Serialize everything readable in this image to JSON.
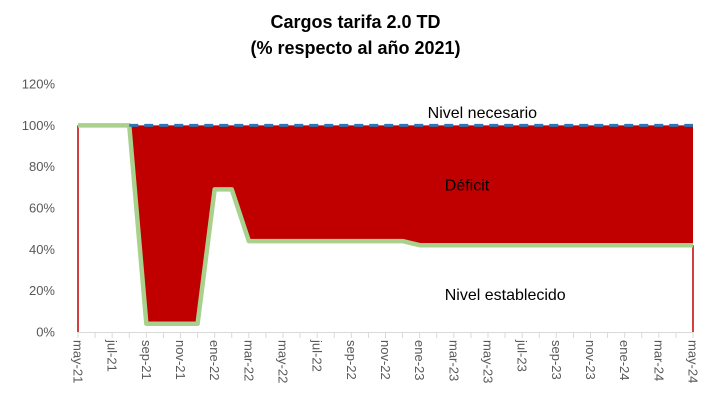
{
  "chart_data": {
    "type": "area",
    "title": [
      "Cargos tarifa 2.0 TD",
      "(% respecto al año 2021)"
    ],
    "xlabel": "",
    "ylabel": "",
    "ylim": [
      0,
      120
    ],
    "yticks": [
      "0%",
      "20%",
      "40%",
      "60%",
      "80%",
      "100%",
      "120%"
    ],
    "y_tick_values": [
      0,
      20,
      40,
      60,
      80,
      100,
      120
    ],
    "x_tick_labels": [
      "may-21",
      "jul-21",
      "sep-21",
      "nov-21",
      "ene-22",
      "mar-22",
      "may-22",
      "jul-22",
      "sep-22",
      "nov-22",
      "ene-23",
      "mar-23",
      "may-23",
      "jul-23",
      "sep-23",
      "nov-23",
      "ene-24",
      "mar-24",
      "may-24"
    ],
    "x_tick_months": [
      "2021-05",
      "2021-07",
      "2021-09",
      "2021-11",
      "2022-01",
      "2022-03",
      "2022-05",
      "2022-07",
      "2022-09",
      "2022-11",
      "2023-01",
      "2023-03",
      "2023-05",
      "2023-07",
      "2023-09",
      "2023-11",
      "2024-01",
      "2024-03",
      "2024-05"
    ],
    "grid": false,
    "series": [
      {
        "name": "Nivel necesario",
        "color": "#2e75b6",
        "style": "dashed",
        "points": [
          {
            "x": "2021-05",
            "y": 100
          },
          {
            "x": "2024-05",
            "y": 100
          }
        ]
      },
      {
        "name": "Nivel establecido",
        "color": "#a9d18e",
        "style": "solid",
        "points": [
          {
            "x": "2021-05",
            "y": 100
          },
          {
            "x": "2021-07",
            "y": 100
          },
          {
            "x": "2021-08",
            "y": 100
          },
          {
            "x": "2021-09",
            "y": 4
          },
          {
            "x": "2021-10",
            "y": 4
          },
          {
            "x": "2021-11",
            "y": 4
          },
          {
            "x": "2021-12",
            "y": 4
          },
          {
            "x": "2022-01",
            "y": 69
          },
          {
            "x": "2022-02",
            "y": 69
          },
          {
            "x": "2022-03",
            "y": 44
          },
          {
            "x": "2022-04",
            "y": 44
          },
          {
            "x": "2022-12",
            "y": 44
          },
          {
            "x": "2023-01",
            "y": 42
          },
          {
            "x": "2024-05",
            "y": 42
          }
        ]
      }
    ],
    "fill_between_color": "#c00000",
    "annotations": [
      {
        "text": "Nivel necesario",
        "x": "2023-01",
        "y": 106
      },
      {
        "text": "Déficit",
        "x": "2023-02",
        "y": 71
      },
      {
        "text": "Nivel establecido",
        "x": "2023-02",
        "y": 18
      }
    ]
  }
}
